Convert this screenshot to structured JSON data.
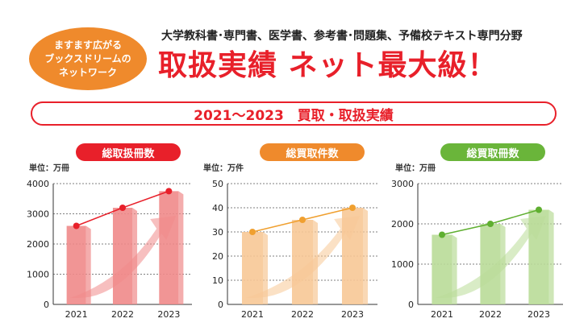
{
  "header": {
    "badge_lines": [
      "ますます広がる",
      "ブックスドリームの",
      "ネットワーク"
    ],
    "subtitle": "大学教科書･専門書、医学書、参考書･問題集、予備校テキスト専門分野",
    "headline": "取扱実績 ネット最大級！",
    "period": "2021〜2023　買取・取扱実績"
  },
  "chart_data": [
    {
      "type": "bar",
      "title": "総取扱冊数",
      "unit": "単位：万冊",
      "categories": [
        "2021",
        "2022",
        "2023"
      ],
      "values": [
        2600,
        3200,
        3750
      ],
      "ylim": [
        0,
        4000
      ],
      "yticks": [
        "0",
        "1000",
        "2000",
        "3000",
        "4000"
      ],
      "grid": true,
      "color": "#e8202a",
      "bar_color": "#f08a8a",
      "line_color": "#e8202a"
    },
    {
      "type": "bar",
      "title": "総買取件数",
      "unit": "単位：万件",
      "categories": [
        "2021",
        "2022",
        "2023"
      ],
      "values": [
        30,
        35,
        40
      ],
      "ylim": [
        0,
        50
      ],
      "yticks": [
        "0",
        "10",
        "20",
        "30",
        "40",
        "50"
      ],
      "grid": true,
      "color": "#ef8a2c",
      "bar_color": "#f7c896",
      "line_color": "#f0a030"
    },
    {
      "type": "bar",
      "title": "総買取冊数",
      "unit": "単位：万冊",
      "categories": [
        "2021",
        "2022",
        "2023"
      ],
      "values": [
        1730,
        2000,
        2350
      ],
      "ylim": [
        0,
        3000
      ],
      "yticks": [
        "0",
        "1000",
        "2000",
        "3000"
      ],
      "grid": true,
      "color": "#6ab53a",
      "bar_color": "#b9dc98",
      "line_color": "#5faf30"
    }
  ]
}
